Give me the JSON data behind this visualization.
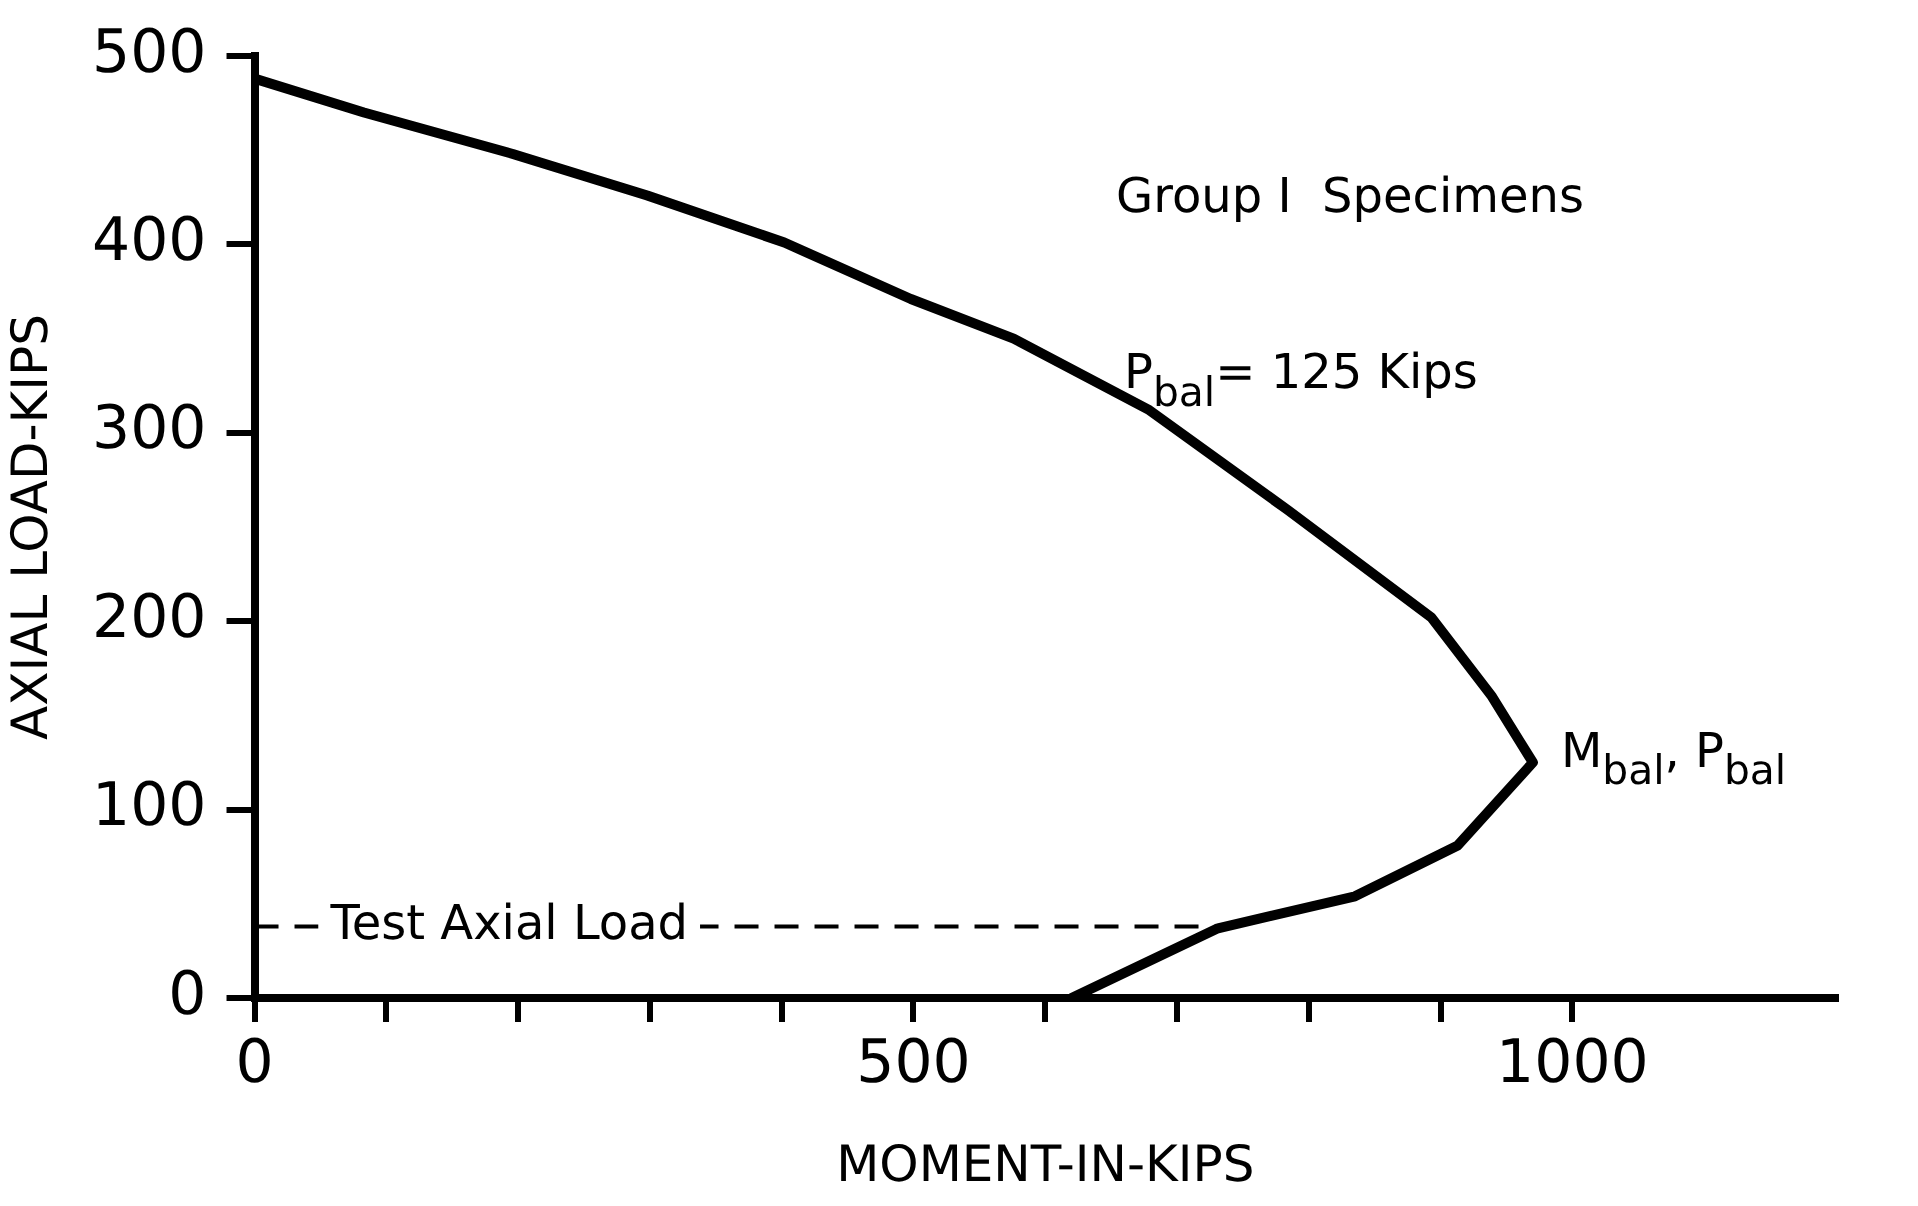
{
  "chart_data": {
    "type": "line",
    "xlabel": "MOMENT-IN-KIPS",
    "ylabel": "AXIAL LOAD-KIPS",
    "series": [
      {
        "color": "#000000",
        "x": [
          0,
          83,
          196,
          298,
          402,
          498,
          576,
          679,
          784,
          893,
          939,
          970,
          913,
          835,
          731,
          620
        ],
        "values": [
          488,
          470,
          448,
          426,
          401,
          371,
          350,
          312,
          259,
          202,
          160,
          125,
          81,
          54,
          37,
          0
        ]
      }
    ],
    "xlim": [
      0,
      1200
    ],
    "xticks": [
      0,
      {
        "value": 100,
        "label": null
      },
      {
        "value": 200,
        "label": null
      },
      {
        "value": 300,
        "label": null
      },
      {
        "value": 400,
        "label": null
      },
      500,
      {
        "value": 600,
        "label": null
      },
      {
        "value": 700,
        "label": null
      },
      {
        "value": 800,
        "label": null
      },
      {
        "value": 900,
        "label": null
      },
      1000
    ],
    "ylim": [
      0,
      500
    ],
    "yticks": [
      0,
      100,
      200,
      300,
      400,
      500
    ],
    "ref_lines": [
      {
        "axis": "y",
        "value": 38,
        "label": "Test Axial Load",
        "line_style": "dashed"
      }
    ],
    "annotations": [
      "Group I  Specimens",
      "P$_{bal}$= 125 Kips",
      {
        "text": "M$_{bal}$, P$_{bal}$",
        "x": 970,
        "y": 125
      }
    ],
    "grid": false,
    "legend": false,
    "marker": "none",
    "line_style": "solid"
  }
}
